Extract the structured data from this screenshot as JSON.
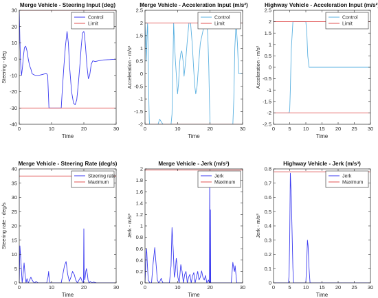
{
  "chart_data": [
    {
      "type": "line",
      "title": "Merge Vehicle - Steering Input (deg)",
      "xlabel": "Time",
      "ylabel": "Steering - deg",
      "xlim": [
        0,
        30
      ],
      "ylim": [
        -40,
        30
      ],
      "xticks": [
        0,
        10,
        20,
        30
      ],
      "yticks": [
        -40,
        -30,
        -20,
        -10,
        0,
        10,
        20,
        30
      ],
      "legend_position": "top-right",
      "series": [
        {
          "name": "Control",
          "color": "#3a3af0",
          "x": [
            0,
            0.2,
            0.4,
            0.7,
            1.0,
            1.3,
            1.6,
            2.0,
            2.4,
            2.8,
            3.2,
            3.6,
            4.0,
            5.0,
            6.0,
            7.0,
            8.0,
            8.5,
            8.8,
            9.0,
            9.2,
            13.0,
            13.3,
            13.8,
            14.3,
            14.8,
            15.2,
            15.6,
            16.2,
            16.8,
            17.3,
            17.8,
            18.3,
            18.8,
            19.2,
            19.6,
            20.0,
            20.2,
            20.5,
            21.0,
            21.4,
            21.8,
            22.3,
            22.8,
            23.5,
            24.5,
            26.0,
            28.0,
            30.0
          ],
          "y": [
            30,
            12,
            -2,
            -10,
            -5,
            2,
            7,
            8,
            5,
            0,
            -4,
            -6,
            -9,
            -10,
            -10,
            -9.5,
            -9,
            -9,
            -10,
            -20,
            -30,
            -30,
            -20,
            -5,
            8,
            17,
            10,
            -5,
            -20,
            -27,
            -28,
            -25,
            -15,
            -3,
            8,
            16,
            17,
            15,
            8,
            -5,
            -12,
            -10,
            -3,
            -1,
            -1.5,
            -1,
            -0.5,
            -0.3,
            0
          ]
        },
        {
          "name": "Limit",
          "color": "#e05050",
          "x": [
            0,
            30
          ],
          "y": [
            30,
            30
          ]
        },
        {
          "name": "",
          "color": "#e05050",
          "x": [
            0,
            30
          ],
          "y": [
            -30,
            -30
          ]
        }
      ]
    },
    {
      "type": "line",
      "title": "Merge Vehicle - Acceleration Input (m/s²)",
      "xlabel": "Time",
      "ylabel": "Acceleration - m/s²",
      "xlim": [
        0,
        30
      ],
      "ylim": [
        -2,
        2.5
      ],
      "xticks": [
        0,
        10,
        20,
        30
      ],
      "yticks": [
        -2,
        -1.5,
        -1,
        -0.5,
        0,
        0.5,
        1,
        1.5,
        2,
        2.5
      ],
      "legend_position": "top-right",
      "series": [
        {
          "name": "Control",
          "color": "#5ab0e0",
          "x": [
            0,
            0.2,
            0.4,
            0.6,
            0.8,
            1.0,
            1.2,
            1.3,
            1.4,
            2.0,
            3.0,
            4.0,
            4.5,
            5.0,
            5.5,
            6.0,
            7.0,
            8.0,
            8.3,
            8.6,
            8.8,
            9.0,
            9.3,
            9.6,
            10.0,
            10.3,
            10.7,
            11.0,
            11.3,
            11.7,
            12.0,
            12.5,
            13.0,
            13.5,
            14.0,
            14.5,
            15.0,
            15.3,
            15.6,
            16.0,
            16.5,
            17.0,
            17.5,
            18.0,
            18.5,
            19.0,
            19.3,
            19.6,
            19.8,
            20.0,
            20.2,
            27.0,
            27.3,
            27.6,
            28.0,
            28.4,
            28.8,
            30.0
          ],
          "y": [
            2,
            1.2,
            0.5,
            1.5,
            2,
            0.5,
            -1.2,
            -1.8,
            -2,
            -2,
            -2,
            -2,
            -1.8,
            -1.9,
            -2,
            -2,
            -2,
            -2,
            -1.6,
            0.5,
            2,
            1.4,
            0.6,
            0,
            -0.8,
            -0.4,
            0.5,
            0.8,
            0.9,
            0.5,
            -0.1,
            0.5,
            1.3,
            2,
            2,
            1.2,
            0.1,
            -0.5,
            -0.8,
            -0.5,
            0.4,
            1.2,
            1.5,
            1.8,
            2,
            2,
            1.5,
            0.3,
            -1.0,
            -2,
            -2,
            -2,
            -1.0,
            1.0,
            2,
            1.2,
            0,
            0
          ]
        },
        {
          "name": "Limit",
          "color": "#e05050",
          "x": [
            0,
            30
          ],
          "y": [
            2,
            2
          ]
        },
        {
          "name": "",
          "color": "#e05050",
          "x": [
            0,
            30
          ],
          "y": [
            -2,
            -2
          ]
        }
      ]
    },
    {
      "type": "line",
      "title": "Highway Vehicle - Acceleration Input (m/s²)",
      "xlabel": "Time",
      "ylabel": "Acceleration - m/s²",
      "xlim": [
        0,
        30
      ],
      "ylim": [
        -2.5,
        2.5
      ],
      "xticks": [
        0,
        5,
        10,
        15,
        20,
        25,
        30
      ],
      "yticks": [
        -2.5,
        -2,
        -1.5,
        -1,
        -0.5,
        0,
        0.5,
        1,
        1.5,
        2,
        2.5
      ],
      "legend_position": "top-right",
      "series": [
        {
          "name": "Control",
          "color": "#5ab0e0",
          "x": [
            0,
            4.8,
            5.0,
            5.2,
            5.5,
            6.0,
            10.0,
            10.3,
            10.6,
            11.0,
            30.0
          ],
          "y": [
            -2,
            -2,
            -1.9,
            -1.0,
            0.8,
            2,
            2,
            1.5,
            0.5,
            0,
            0
          ]
        },
        {
          "name": "Limit",
          "color": "#e05050",
          "x": [
            0,
            30
          ],
          "y": [
            2,
            2
          ]
        },
        {
          "name": "",
          "color": "#e05050",
          "x": [
            0,
            30
          ],
          "y": [
            -2,
            -2
          ]
        }
      ]
    },
    {
      "type": "line",
      "title": "Merge Vehicle - Steering Rate (deg/s)",
      "xlabel": "Time",
      "ylabel": "Steering rate - deg/s",
      "xlim": [
        0,
        30
      ],
      "ylim": [
        0,
        40
      ],
      "xticks": [
        0,
        10,
        20,
        30
      ],
      "yticks": [
        0,
        5,
        10,
        15,
        20,
        25,
        30,
        35,
        40
      ],
      "legend_position": "top-right",
      "series": [
        {
          "name": "Steering rate",
          "color": "#3a3af0",
          "x": [
            0,
            0.2,
            0.5,
            0.9,
            1.2,
            1.5,
            1.8,
            2.1,
            2.4,
            2.8,
            3.2,
            3.6,
            4.0,
            4.4,
            4.8,
            5.2,
            5.8,
            6.5,
            7.5,
            8.5,
            8.9,
            9.1,
            9.3,
            9.6,
            10.0,
            13.0,
            13.5,
            14.0,
            14.5,
            15.0,
            15.5,
            16.0,
            16.5,
            17.0,
            17.5,
            18.0,
            18.5,
            19.0,
            19.5,
            19.9,
            20.0,
            20.1,
            20.3,
            20.6,
            20.8,
            21.1,
            21.3,
            21.6,
            22.0,
            22.5,
            23.0,
            24.0,
            26.0,
            30.0
          ],
          "y": [
            0,
            13,
            8,
            0,
            3,
            7,
            3,
            0,
            1.5,
            0,
            1,
            2,
            1,
            0.3,
            0,
            0.5,
            0,
            0,
            0,
            0,
            2,
            4,
            1,
            0,
            0,
            0,
            3,
            6,
            7.5,
            3,
            0.5,
            2,
            4,
            3,
            1,
            0,
            1,
            2,
            0.5,
            0,
            19,
            3,
            1,
            4,
            5,
            3,
            1,
            0,
            0.5,
            0,
            0.3,
            0,
            0,
            0
          ]
        },
        {
          "name": "Maximum",
          "color": "#e05050",
          "x": [
            0,
            30
          ],
          "y": [
            37.5,
            37.5
          ]
        }
      ]
    },
    {
      "type": "line",
      "title": "Merge Vehicle - Jerk (m/s³)",
      "xlabel": "Time",
      "ylabel": "Jerk - m/s³",
      "xlim": [
        0,
        30
      ],
      "ylim": [
        0,
        2
      ],
      "xticks": [
        0,
        10,
        20,
        30
      ],
      "yticks": [
        0,
        0.2,
        0.4,
        0.6,
        0.8,
        1,
        1.2,
        1.4,
        1.6,
        1.8,
        2
      ],
      "legend_position": "top-right",
      "series": [
        {
          "name": "Jerk",
          "color": "#3a3af0",
          "x": [
            0,
            0.15,
            0.3,
            0.5,
            0.7,
            1.0,
            1.5,
            2.0,
            2.5,
            3.0,
            3.3,
            3.8,
            4.2,
            4.6,
            4.8,
            5.0,
            5.2,
            5.5,
            6.0,
            7.5,
            8.0,
            8.3,
            8.7,
            9.0,
            9.3,
            9.6,
            9.8,
            10.1,
            10.5,
            11.0,
            11.4,
            11.8,
            12.2,
            12.6,
            13.0,
            13.4,
            13.8,
            14.2,
            14.6,
            15.0,
            15.4,
            15.8,
            16.2,
            16.6,
            17.0,
            17.4,
            17.8,
            18.2,
            18.6,
            19.0,
            19.5,
            19.8,
            19.9,
            20.0,
            20.1,
            20.2,
            20.5,
            26.5,
            27.0,
            27.3,
            27.5,
            27.7,
            27.9,
            28.2,
            30.0
          ],
          "y": [
            0,
            0.22,
            0.5,
            0.6,
            0.35,
            0.05,
            0,
            0,
            0.35,
            0.62,
            0.4,
            0.05,
            0,
            0.03,
            0.06,
            0.08,
            0.04,
            0,
            0,
            0,
            0.3,
            0.97,
            0.55,
            0.1,
            0.2,
            0.43,
            0.35,
            0.1,
            0,
            0.32,
            0.2,
            0,
            0.15,
            0.2,
            0,
            0.1,
            0.15,
            0,
            0.12,
            0.18,
            0,
            0.1,
            0.2,
            0.05,
            0.1,
            0.21,
            0.1,
            0.05,
            0.13,
            0,
            0.05,
            0,
            1.95,
            0,
            1.28,
            0,
            0,
            0,
            0.36,
            0.25,
            0.2,
            0.3,
            0.18,
            0,
            0
          ]
        },
        {
          "name": "Maximum",
          "color": "#e05050",
          "x": [
            0,
            30
          ],
          "y": [
            1.98,
            1.98
          ]
        }
      ]
    },
    {
      "type": "line",
      "title": "Highway Vehicle - Jerk (m/s³)",
      "xlabel": "Time",
      "ylabel": "Jerk - m/s³",
      "xlim": [
        0,
        30
      ],
      "ylim": [
        0,
        0.8
      ],
      "xticks": [
        0,
        5,
        10,
        15,
        20,
        25,
        30
      ],
      "yticks": [
        0,
        0.1,
        0.2,
        0.3,
        0.4,
        0.5,
        0.6,
        0.7,
        0.8
      ],
      "legend_position": "top-right",
      "series": [
        {
          "name": "Jerk",
          "color": "#3a3af0",
          "x": [
            0,
            4.6,
            4.8,
            5.0,
            5.2,
            5.5,
            5.8,
            6.0,
            6.2,
            6.5,
            10.0,
            10.2,
            10.5,
            10.7,
            11.0,
            11.3,
            30.0
          ],
          "y": [
            0,
            0,
            0.05,
            0.3,
            0.77,
            0.6,
            0.3,
            0.1,
            0,
            0,
            0,
            0.1,
            0.3,
            0.26,
            0.1,
            0,
            0
          ]
        },
        {
          "name": "Maximum",
          "color": "#e05050",
          "x": [
            0,
            30
          ],
          "y": [
            0.78,
            0.78
          ]
        }
      ]
    }
  ]
}
